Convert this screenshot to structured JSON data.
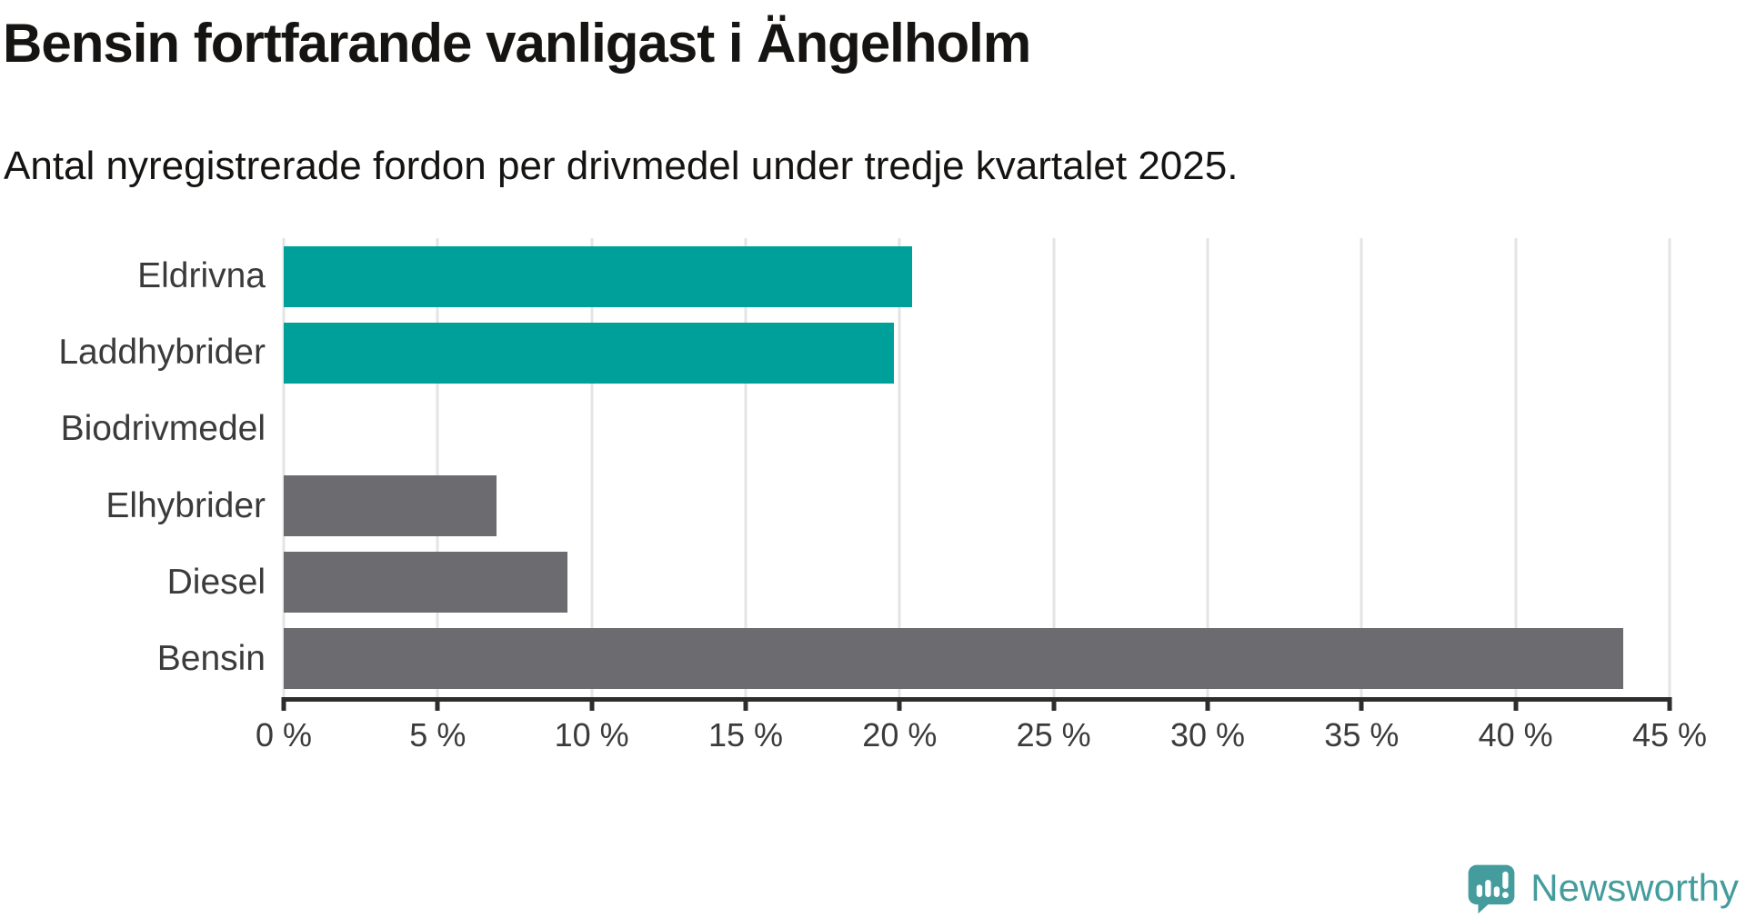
{
  "header": {
    "title": "Bensin fortfarande vanligast i Ängelholm",
    "subtitle": "Antal nyregistrerade fordon per drivmedel under tredje kvartalet 2025."
  },
  "chart_data": {
    "type": "bar",
    "orientation": "horizontal",
    "title": "Bensin fortfarande vanligast i Ängelholm",
    "subtitle": "Antal nyregistrerade fordon per drivmedel under tredje kvartalet 2025.",
    "categories": [
      "Eldrivna",
      "Laddhybrider",
      "Biodrivmedel",
      "Elhybrider",
      "Diesel",
      "Bensin"
    ],
    "values": [
      20.4,
      19.8,
      0,
      6.9,
      9.2,
      43.5
    ],
    "unit": "%",
    "xlim": [
      0,
      45
    ],
    "x_tick_values": [
      0,
      5,
      10,
      15,
      20,
      25,
      30,
      35,
      40,
      45
    ],
    "x_tick_labels": [
      "0 %",
      "5 %",
      "10 %",
      "15 %",
      "20 %",
      "25 %",
      "30 %",
      "35 %",
      "40 %",
      "45 %"
    ],
    "grid": true,
    "legend": "none",
    "bar_colors": [
      "#00a09a",
      "#00a09a",
      "#6b6b70",
      "#6b6b70",
      "#6b6b70",
      "#6b6b70"
    ],
    "colors": {
      "electric_teal": "#00a09a",
      "other_gray": "#6b6b70",
      "gridline": "#e4e4e4",
      "axis": "#2f2d2b",
      "label_text": "#3b3b3b"
    }
  },
  "branding": {
    "logo_text": "Newsworthy",
    "logo_color": "#459c9c",
    "logo_icon": "newsworthy-bubble-chart-icon"
  }
}
